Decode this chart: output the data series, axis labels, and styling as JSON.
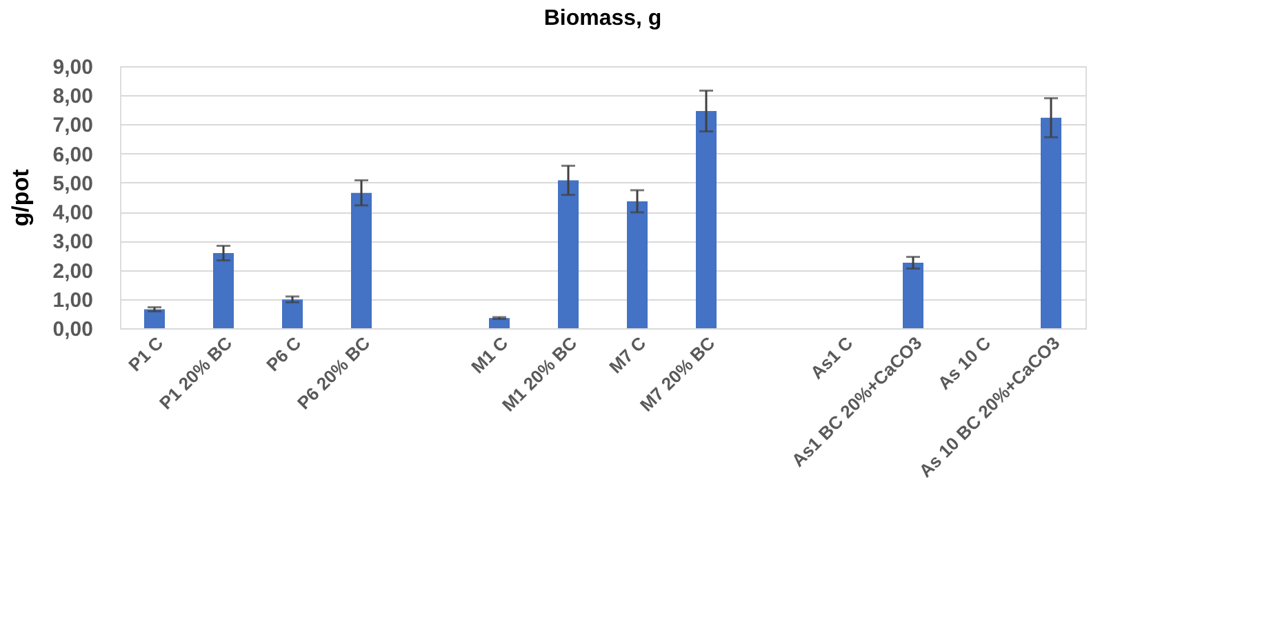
{
  "chart_data": {
    "type": "bar",
    "title": "Biomass, g",
    "ylabel": "g/pot",
    "categories": [
      "P1 C",
      "P1 20% BC",
      "P6 C",
      "P6 20% BC",
      null,
      "M1 C",
      "M1 20% BC",
      "M7 C",
      "M7 20% BC",
      null,
      "As1 C",
      "As1 BC 20%+CaCO3",
      "As 10 C",
      "As 10 BC 20%+CaCO3"
    ],
    "values": [
      0.65,
      2.58,
      0.99,
      4.65,
      null,
      0.35,
      5.08,
      4.36,
      7.46,
      null,
      null,
      2.25,
      null,
      7.23
    ],
    "errors": [
      0.07,
      0.25,
      0.1,
      0.43,
      null,
      0.03,
      0.5,
      0.38,
      0.7,
      null,
      null,
      0.2,
      null,
      0.67
    ],
    "color": "#4472c4",
    "ylim": [
      0,
      9
    ],
    "yticks": [
      {
        "value": 0,
        "label": "0,00"
      },
      {
        "value": 1,
        "label": "1,00"
      },
      {
        "value": 2,
        "label": "2,00"
      },
      {
        "value": 3,
        "label": "3,00"
      },
      {
        "value": 4,
        "label": "4,00"
      },
      {
        "value": 5,
        "label": "5,00"
      },
      {
        "value": 6,
        "label": "6,00"
      },
      {
        "value": 7,
        "label": "7,00"
      },
      {
        "value": 8,
        "label": "8,00"
      },
      {
        "value": 9,
        "label": "9,00"
      }
    ],
    "grid": "y"
  }
}
